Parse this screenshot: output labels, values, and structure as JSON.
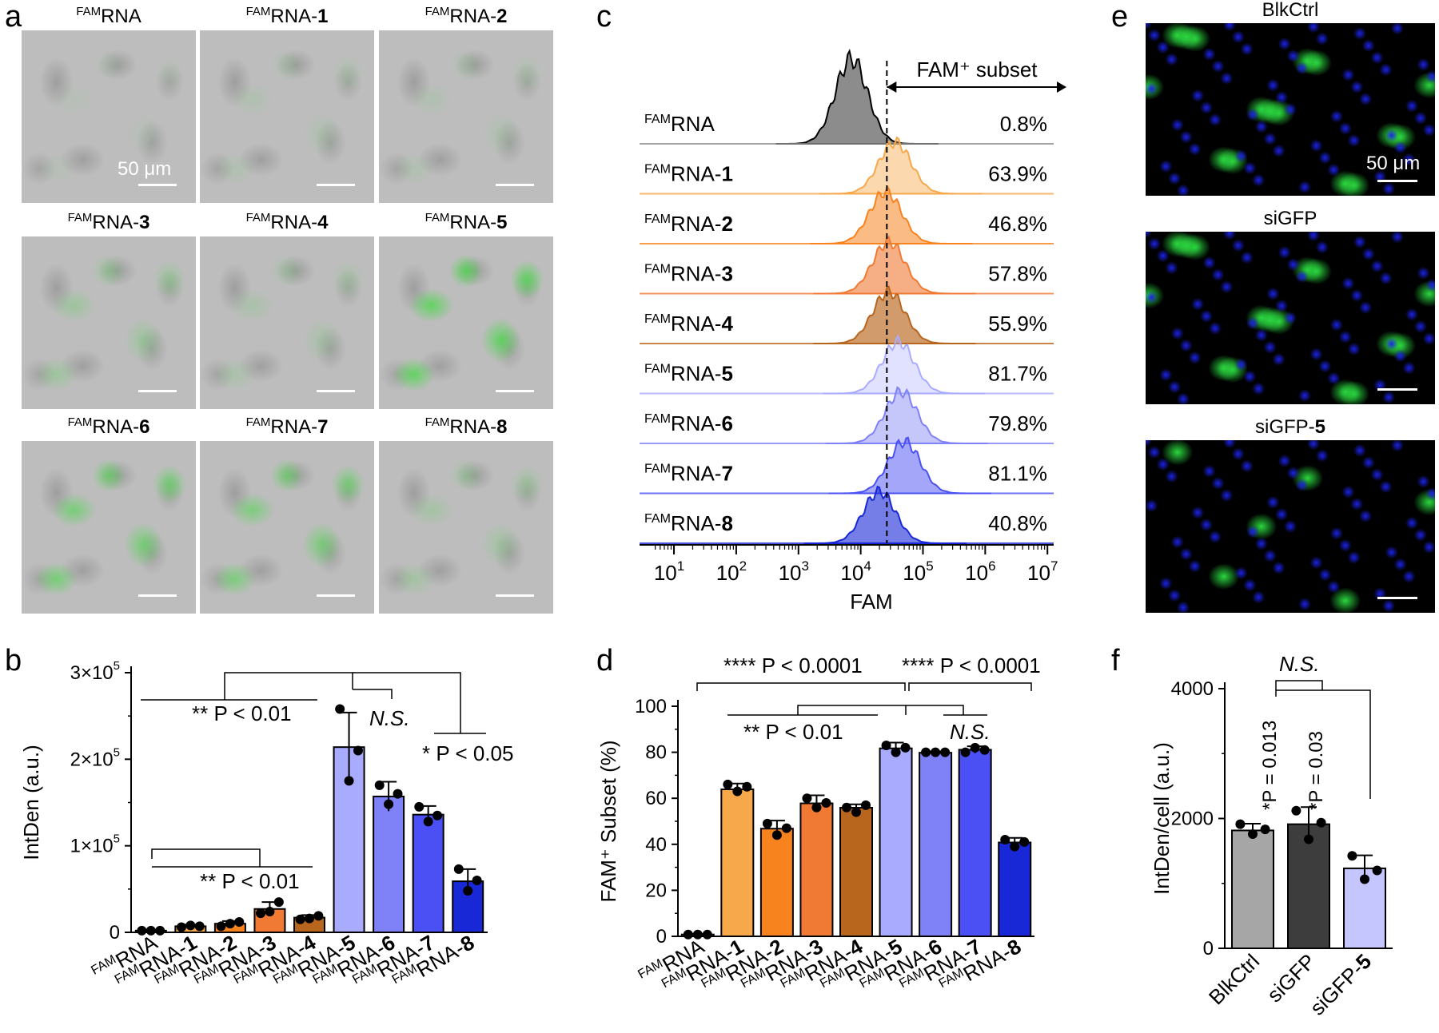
{
  "panel_letters": {
    "a": "a",
    "b": "b",
    "c": "c",
    "d": "d",
    "e": "e",
    "f": "f"
  },
  "colors": {
    "gray_light": "#a6a6a6",
    "gray_dark": "#3d3d3d",
    "orange1": "#f6a84a",
    "orange2": "#f7831f",
    "orange3": "#f07a33",
    "orange4": "#b8651d",
    "blue5": "#a9abff",
    "blue6": "#7f82f7",
    "blue7": "#4a50f3",
    "blue8": "#1828d6",
    "lavender": "#c6c6ff"
  },
  "panel_a": {
    "images": [
      {
        "prefix": "FAM",
        "name": "RNA",
        "suffix": "",
        "type": "brightfield",
        "green": 0.05
      },
      {
        "prefix": "FAM",
        "name": "RNA-",
        "suffix": "1",
        "type": "brightfield",
        "green": 0.1
      },
      {
        "prefix": "FAM",
        "name": "RNA-",
        "suffix": "2",
        "type": "brightfield",
        "green": 0.1
      },
      {
        "prefix": "FAM",
        "name": "RNA-",
        "suffix": "3",
        "type": "brightfield",
        "green": 0.25
      },
      {
        "prefix": "FAM",
        "name": "RNA-",
        "suffix": "4",
        "type": "brightfield",
        "green": 0.15
      },
      {
        "prefix": "FAM",
        "name": "RNA-",
        "suffix": "5",
        "type": "brightfield",
        "green": 0.7
      },
      {
        "prefix": "FAM",
        "name": "RNA-",
        "suffix": "6",
        "type": "brightfield",
        "green": 0.55
      },
      {
        "prefix": "FAM",
        "name": "RNA-",
        "suffix": "7",
        "type": "brightfield",
        "green": 0.5
      },
      {
        "prefix": "FAM",
        "name": "RNA-",
        "suffix": "8",
        "type": "brightfield",
        "green": 0.2
      }
    ],
    "scale_label": "50 μm"
  },
  "panel_e": {
    "images": [
      {
        "label": "BlkCtrl",
        "bold": ""
      },
      {
        "label": "siGFP",
        "bold": ""
      },
      {
        "label": "siGFP-",
        "bold": "5"
      }
    ],
    "scale_label": "50 μm"
  },
  "chart_data": [
    {
      "panel": "b",
      "type": "bar",
      "ylabel": "IntDen (a.u.)",
      "ylim": [
        0,
        300000
      ],
      "yticks": [
        "0",
        "1×10",
        "2×10",
        "3×10"
      ],
      "ytick_exp": "5",
      "categories": [
        {
          "prefix": "FAM",
          "name": "RNA",
          "suffix": ""
        },
        {
          "prefix": "FAM",
          "name": "RNA-",
          "suffix": "1"
        },
        {
          "prefix": "FAM",
          "name": "RNA-",
          "suffix": "2"
        },
        {
          "prefix": "FAM",
          "name": "RNA-",
          "suffix": "3"
        },
        {
          "prefix": "FAM",
          "name": "RNA-",
          "suffix": "4"
        },
        {
          "prefix": "FAM",
          "name": "RNA-",
          "suffix": "5"
        },
        {
          "prefix": "FAM",
          "name": "RNA-",
          "suffix": "6"
        },
        {
          "prefix": "FAM",
          "name": "RNA-",
          "suffix": "7"
        },
        {
          "prefix": "FAM",
          "name": "RNA-",
          "suffix": "8"
        }
      ],
      "values": [
        2000,
        7000,
        10000,
        27000,
        17000,
        214000,
        157000,
        136000,
        59000
      ],
      "errors": [
        1000,
        2000,
        3000,
        8000,
        3000,
        40000,
        17000,
        10000,
        14000
      ],
      "points": [
        [
          2000,
          2000,
          2000
        ],
        [
          6000,
          8000,
          7000
        ],
        [
          7000,
          10000,
          12000
        ],
        [
          22000,
          24000,
          35000
        ],
        [
          15000,
          16000,
          19000
        ],
        [
          258000,
          175000,
          210000
        ],
        [
          170000,
          148000,
          160000
        ],
        [
          145000,
          128000,
          135000
        ],
        [
          73000,
          48000,
          60000
        ]
      ],
      "annotations": [
        "** P < 0.01",
        "N.S.",
        "* P < 0.05",
        "** P < 0.01"
      ]
    },
    {
      "panel": "c",
      "type": "histogram",
      "xlabel": "FAM",
      "xscale": "log",
      "xticks": [
        "10",
        "10",
        "10",
        "10",
        "10",
        "10",
        "10"
      ],
      "xtick_exps": [
        "1",
        "2",
        "3",
        "4",
        "5",
        "6",
        "7"
      ],
      "gate_label": "FAM⁺ subset",
      "rows": [
        {
          "prefix": "FAM",
          "name": "RNA",
          "suffix": "",
          "percent": "0.8%",
          "peak_log": 3.85
        },
        {
          "prefix": "FAM",
          "name": "RNA-",
          "suffix": "1",
          "percent": "63.9%",
          "peak_log": 4.55
        },
        {
          "prefix": "FAM",
          "name": "RNA-",
          "suffix": "2",
          "percent": "46.8%",
          "peak_log": 4.4
        },
        {
          "prefix": "FAM",
          "name": "RNA-",
          "suffix": "3",
          "percent": "57.8%",
          "peak_log": 4.45
        },
        {
          "prefix": "FAM",
          "name": "RNA-",
          "suffix": "4",
          "percent": "55.9%",
          "peak_log": 4.45
        },
        {
          "prefix": "FAM",
          "name": "RNA-",
          "suffix": "5",
          "percent": "81.7%",
          "peak_log": 4.6
        },
        {
          "prefix": "FAM",
          "name": "RNA-",
          "suffix": "6",
          "percent": "79.8%",
          "peak_log": 4.65
        },
        {
          "prefix": "FAM",
          "name": "RNA-",
          "suffix": "7",
          "percent": "81.1%",
          "peak_log": 4.7
        },
        {
          "prefix": "FAM",
          "name": "RNA-",
          "suffix": "8",
          "percent": "40.8%",
          "peak_log": 4.3
        }
      ],
      "gate_log": 4.42
    },
    {
      "panel": "d",
      "type": "bar",
      "ylabel": "FAM⁺ Subset (%)",
      "ylim": [
        0,
        100
      ],
      "yticks": [
        "0",
        "20",
        "40",
        "60",
        "80",
        "100"
      ],
      "categories": [
        {
          "prefix": "FAM",
          "name": "RNA",
          "suffix": ""
        },
        {
          "prefix": "FAM",
          "name": "RNA-",
          "suffix": "1"
        },
        {
          "prefix": "FAM",
          "name": "RNA-",
          "suffix": "2"
        },
        {
          "prefix": "FAM",
          "name": "RNA-",
          "suffix": "3"
        },
        {
          "prefix": "FAM",
          "name": "RNA-",
          "suffix": "4"
        },
        {
          "prefix": "FAM",
          "name": "RNA-",
          "suffix": "5"
        },
        {
          "prefix": "FAM",
          "name": "RNA-",
          "suffix": "6"
        },
        {
          "prefix": "FAM",
          "name": "RNA-",
          "suffix": "7"
        },
        {
          "prefix": "FAM",
          "name": "RNA-",
          "suffix": "8"
        }
      ],
      "values": [
        0.8,
        63.9,
        46.8,
        57.8,
        55.9,
        81.7,
        79.8,
        81.1,
        40.8
      ],
      "errors": [
        0.3,
        2.5,
        3.5,
        3.5,
        1.5,
        2.5,
        0.5,
        1.5,
        2
      ],
      "points": [
        [
          0.8,
          0.8,
          0.8
        ],
        [
          66,
          63,
          65
        ],
        [
          49,
          44,
          47
        ],
        [
          60,
          56,
          58
        ],
        [
          56,
          54,
          57
        ],
        [
          83,
          80,
          82
        ],
        [
          80,
          80,
          80
        ],
        [
          80,
          82,
          81
        ],
        [
          42,
          39,
          41
        ]
      ],
      "annotations": [
        "**** P < 0.0001",
        "**** P < 0.0001",
        "** P < 0.01",
        "N.S."
      ]
    },
    {
      "panel": "f",
      "type": "bar",
      "ylabel": "IntDen/cell (a.u.)",
      "ylim": [
        0,
        5000
      ],
      "yticks": [
        "0",
        "2000",
        "4000"
      ],
      "categories": [
        {
          "name": "BlkCtrl",
          "suffix": ""
        },
        {
          "name": "siGFP",
          "suffix": ""
        },
        {
          "name": "siGFP-",
          "suffix": "5"
        }
      ],
      "values": [
        2270,
        2390,
        1540
      ],
      "errors": [
        130,
        330,
        250
      ],
      "points": [
        [
          2390,
          2200,
          2290
        ],
        [
          2650,
          2100,
          2420
        ],
        [
          1780,
          1330,
          1500
        ]
      ],
      "annotations": [
        "N.S.",
        "*P = 0.013",
        "*P = 0.03"
      ]
    }
  ]
}
